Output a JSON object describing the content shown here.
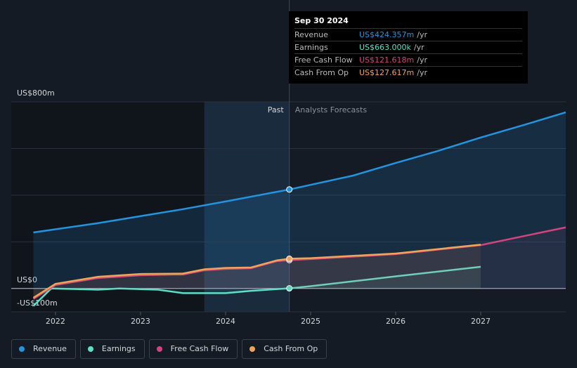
{
  "chart_data": {
    "type": "line",
    "xlim": [
      2021.48,
      2028.0
    ],
    "xticks": [
      2022,
      2023,
      2024,
      2025,
      2026,
      2027
    ],
    "ylim": [
      -100,
      800
    ],
    "yticks": [
      {
        "value": -100,
        "label": "-US$100m"
      },
      {
        "value": 0,
        "label": "US$0"
      },
      {
        "value": 200
      },
      {
        "value": 400
      },
      {
        "value": 600
      },
      {
        "value": 800,
        "label": "US$800m"
      }
    ],
    "grid": true,
    "highlight": [
      2023.75,
      2024.75
    ],
    "past_label": "Past",
    "forecast_label": "Analysts Forecasts",
    "series": [
      {
        "name": "Revenue",
        "color": "#2394df",
        "x": [
          2021.74,
          2022.5,
          2023,
          2023.5,
          2024,
          2024.75,
          2025.5,
          2026,
          2026.5,
          2027,
          2027.5,
          2028
        ],
        "values": [
          240,
          280,
          310,
          340,
          373,
          424.357,
          484,
          538,
          590,
          647,
          700,
          755
        ]
      },
      {
        "name": "Earnings",
        "color": "#5ce0c8",
        "x": [
          2021.74,
          2021.95,
          2022.5,
          2022.75,
          2023.2,
          2023.5,
          2024,
          2024.3,
          2024.75,
          2025,
          2026,
          2027
        ],
        "values": [
          -75,
          0,
          -5,
          0,
          -5,
          -20,
          -20,
          -10,
          0.663,
          10,
          52,
          93
        ]
      },
      {
        "name": "Free Cash Flow",
        "color": "#d0457f",
        "x": [
          2021.74,
          2022,
          2022.5,
          2023,
          2023.5,
          2023.75,
          2024,
          2024.3,
          2024.6,
          2024.75,
          2025,
          2026,
          2027,
          2028
        ],
        "values": [
          -45,
          15,
          45,
          57,
          60,
          78,
          84,
          87,
          117,
          121.618,
          126,
          147,
          186,
          262
        ]
      },
      {
        "name": "Cash From Op",
        "color": "#f0a45a",
        "x": [
          2021.74,
          2022,
          2022.5,
          2023,
          2023.5,
          2023.75,
          2024,
          2024.3,
          2024.6,
          2024.75,
          2025,
          2026,
          2027
        ],
        "values": [
          -40,
          20,
          50,
          62,
          64,
          82,
          88,
          90,
          120,
          127.617,
          130,
          150,
          188
        ]
      }
    ]
  },
  "tooltip": {
    "title": "Sep 30 2024",
    "rows": [
      {
        "label": "Revenue",
        "value": "US$424.357m",
        "unit": "/yr"
      },
      {
        "label": "Earnings",
        "value": "US$663.000k",
        "unit": "/yr"
      },
      {
        "label": "Free Cash Flow",
        "value": "US$121.618m",
        "unit": "/yr"
      },
      {
        "label": "Cash From Op",
        "value": "US$127.617m",
        "unit": "/yr"
      }
    ]
  }
}
